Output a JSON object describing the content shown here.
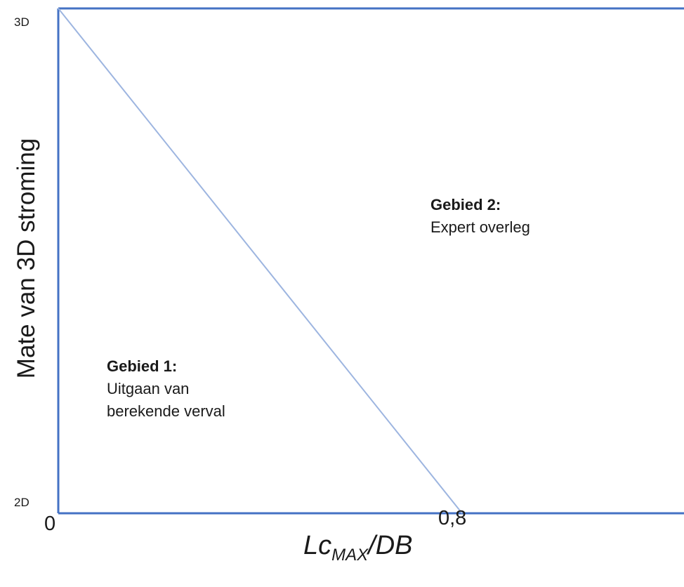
{
  "chart_data": {
    "type": "line",
    "title": "",
    "ylabel": "Mate van 3D stroming",
    "xlabel": {
      "base": "Lc",
      "subscript": "MAX",
      "suffix": "/DB"
    },
    "x_ticks": [
      "0",
      "0,8"
    ],
    "y_ticks": [
      "2D",
      "3D"
    ],
    "xlim": [
      0,
      0.8
    ],
    "ylim": [
      0,
      1
    ],
    "boundary_line": {
      "x": [
        0,
        0.8
      ],
      "y": [
        1,
        0
      ]
    },
    "regions": [
      {
        "title": "Gebied 1:",
        "lines": [
          "Uitgaan van",
          "berekende verval"
        ]
      },
      {
        "title": "Gebied 2:",
        "lines": [
          "Expert overleg"
        ]
      }
    ],
    "grid": false,
    "colors": {
      "frame": "#4472c4",
      "boundary": "#9db5e0",
      "text": "#1a1a1a"
    }
  }
}
